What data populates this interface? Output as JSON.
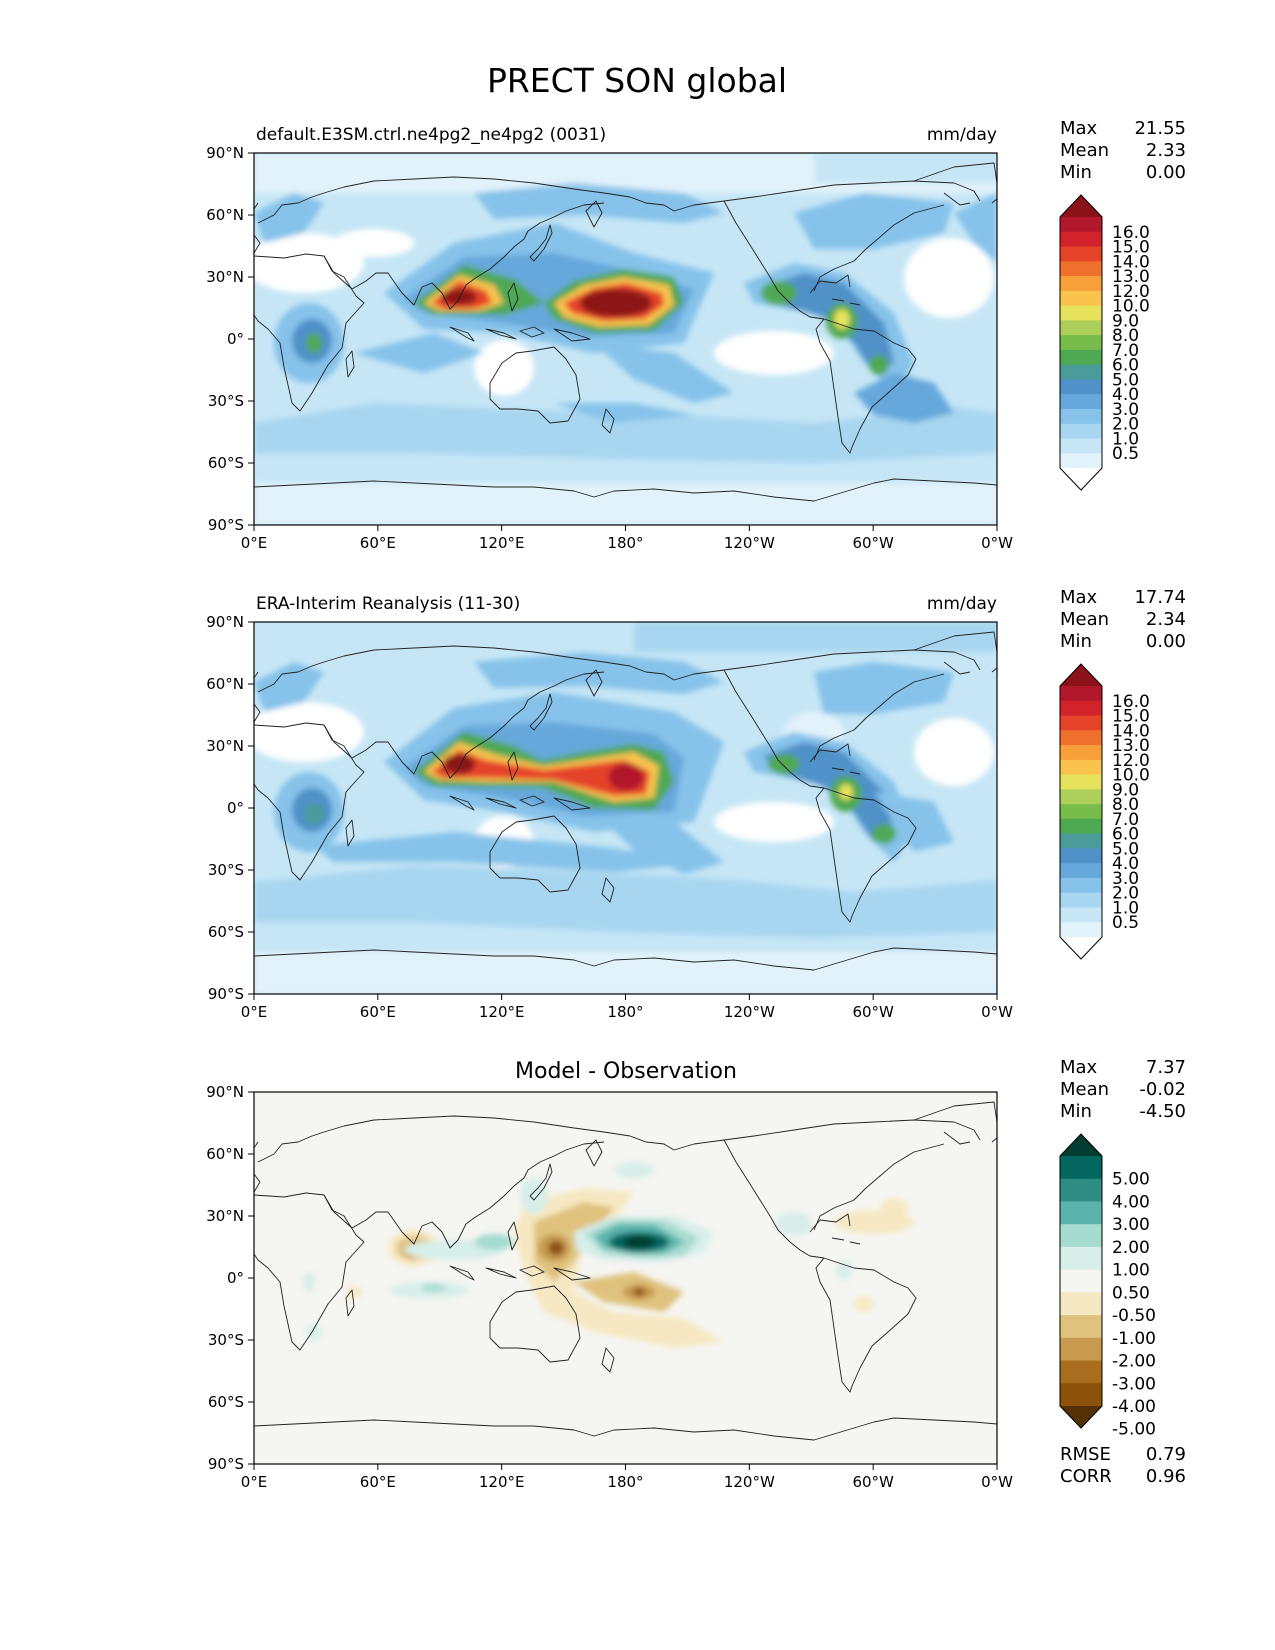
{
  "figure": {
    "title": "PRECT SON global"
  },
  "axis": {
    "lat_ticks": [
      "90°N",
      "60°N",
      "30°N",
      "0°",
      "30°S",
      "60°S",
      "90°S"
    ],
    "lon_ticks": [
      "0°E",
      "60°E",
      "120°E",
      "180°",
      "120°W",
      "60°W",
      "0°W"
    ]
  },
  "panels": [
    {
      "id": "model",
      "title_left": "default.E3SM.ctrl.ne4pg2_ne4pg2 (0031)",
      "title_center": "",
      "units": "mm/day",
      "stats": [
        {
          "label": "Max",
          "value": "21.55"
        },
        {
          "label": "Mean",
          "value": "2.33"
        },
        {
          "label": "Min",
          "value": "0.00"
        }
      ],
      "colorbar": {
        "labels": [
          "16.0",
          "15.0",
          "14.0",
          "13.0",
          "12.0",
          "10.0",
          "9.0",
          "8.0",
          "7.0",
          "6.0",
          "5.0",
          "4.0",
          "3.0",
          "2.0",
          "1.0",
          "0.5"
        ],
        "colors": [
          "#ffffff",
          "#e2f2fb",
          "#c6e6f6",
          "#a8d6f0",
          "#86c2ea",
          "#66a8dc",
          "#4f91c8",
          "#4a9b9a",
          "#4fa852",
          "#78bc4c",
          "#aed05a",
          "#e6e25c",
          "#f9c34d",
          "#f7a03a",
          "#f0702e",
          "#e5432a",
          "#d2222b",
          "#b2182b",
          "#8c1219"
        ]
      }
    },
    {
      "id": "obs",
      "title_left": "ERA-Interim Reanalysis (11-30)",
      "title_center": "",
      "units": "mm/day",
      "stats": [
        {
          "label": "Max",
          "value": "17.74"
        },
        {
          "label": "Mean",
          "value": "2.34"
        },
        {
          "label": "Min",
          "value": "0.00"
        }
      ],
      "colorbar": {
        "labels": [
          "16.0",
          "15.0",
          "14.0",
          "13.0",
          "12.0",
          "10.0",
          "9.0",
          "8.0",
          "7.0",
          "6.0",
          "5.0",
          "4.0",
          "3.0",
          "2.0",
          "1.0",
          "0.5"
        ],
        "colors": [
          "#ffffff",
          "#e2f2fb",
          "#c6e6f6",
          "#a8d6f0",
          "#86c2ea",
          "#66a8dc",
          "#4f91c8",
          "#4a9b9a",
          "#4fa852",
          "#78bc4c",
          "#aed05a",
          "#e6e25c",
          "#f9c34d",
          "#f7a03a",
          "#f0702e",
          "#e5432a",
          "#d2222b",
          "#b2182b",
          "#8c1219"
        ]
      }
    },
    {
      "id": "diff",
      "title_left": "",
      "title_center": "Model - Observation",
      "units": "",
      "stats": [
        {
          "label": "Max",
          "value": "7.37"
        },
        {
          "label": "Mean",
          "value": "-0.02"
        },
        {
          "label": "Min",
          "value": "-4.50"
        }
      ],
      "colorbar": {
        "labels": [
          "5.00",
          "4.00",
          "3.00",
          "2.00",
          "1.00",
          "0.50",
          "-0.50",
          "-1.00",
          "-2.00",
          "-3.00",
          "-4.00",
          "-5.00"
        ],
        "colors": [
          "#543005",
          "#8c510a",
          "#a86d1f",
          "#c89a50",
          "#dfc27d",
          "#f6e8c3",
          "#f5f5f2",
          "#d7eee9",
          "#a6dbd0",
          "#5ab4ac",
          "#2f8c83",
          "#01665e",
          "#003c30"
        ]
      },
      "metrics": [
        {
          "label": "RMSE",
          "value": "0.79"
        },
        {
          "label": "CORR",
          "value": "0.96"
        }
      ]
    }
  ]
}
